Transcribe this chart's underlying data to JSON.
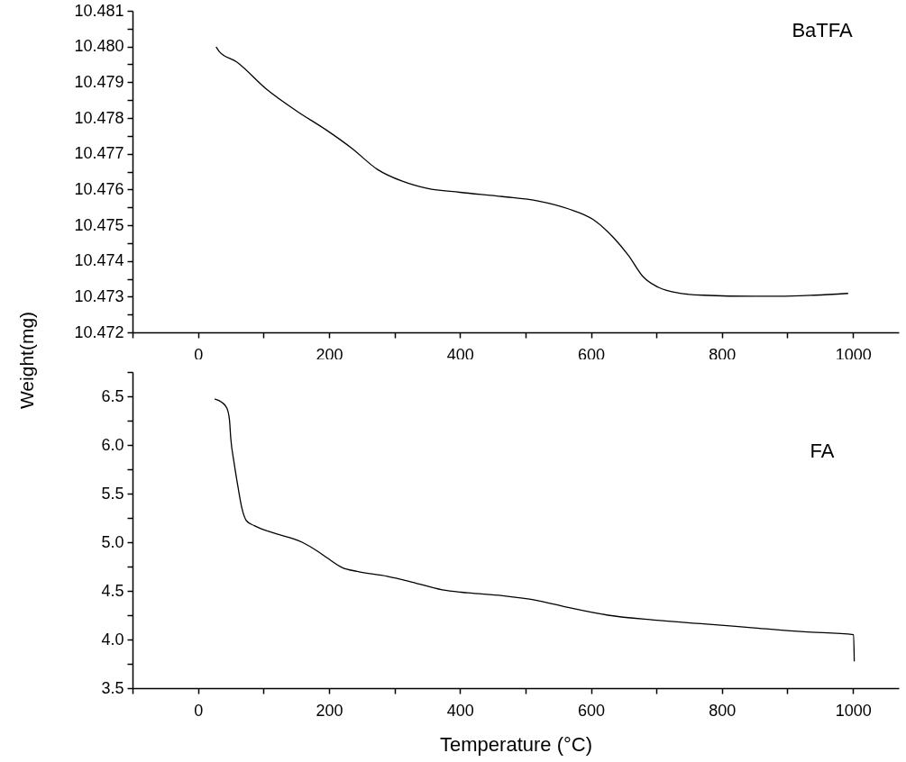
{
  "chart_data": [
    {
      "type": "line",
      "ylabel": "Weight(mg)",
      "xlim": [
        -100,
        1070
      ],
      "ylim": [
        10.472,
        10.481
      ],
      "xticks": [
        {
          "value": -100,
          "label": null
        },
        0,
        {
          "value": 100,
          "label": null
        },
        200,
        {
          "value": 300,
          "label": null
        },
        400,
        {
          "value": 500,
          "label": null
        },
        600,
        {
          "value": 700,
          "label": null
        },
        800,
        {
          "value": 900,
          "label": null
        },
        1000
      ],
      "yticks": [
        {
          "value": 10.472,
          "label": "10.472"
        },
        {
          "value": 10.4725,
          "label": null
        },
        {
          "value": 10.473,
          "label": "10.473"
        },
        {
          "value": 10.4735,
          "label": null
        },
        {
          "value": 10.474,
          "label": "10.474"
        },
        {
          "value": 10.4745,
          "label": null
        },
        {
          "value": 10.475,
          "label": "10.475"
        },
        {
          "value": 10.4755,
          "label": null
        },
        {
          "value": 10.476,
          "label": "10.476"
        },
        {
          "value": 10.4765,
          "label": null
        },
        {
          "value": 10.477,
          "label": "10.477"
        },
        {
          "value": 10.4775,
          "label": null
        },
        {
          "value": 10.478,
          "label": "10.478"
        },
        {
          "value": 10.4785,
          "label": null
        },
        {
          "value": 10.479,
          "label": "10.479"
        },
        {
          "value": 10.4795,
          "label": null
        },
        {
          "value": 10.48,
          "label": "10.480"
        },
        {
          "value": 10.4805,
          "label": null
        },
        {
          "value": 10.481,
          "label": "10.481"
        }
      ],
      "series": [
        {
          "name": "BaTFA",
          "color": "#000000",
          "x": [
            28,
            32,
            59,
            105,
            151,
            197,
            235,
            274,
            312,
            350,
            400,
            465,
            519,
            565,
            604,
            634,
            657,
            680,
            703,
            734,
            772,
            849,
            887,
            941,
            992
          ],
          "values": [
            10.47998,
            10.47987,
            10.47957,
            10.4788,
            10.47819,
            10.47765,
            10.47715,
            10.47656,
            10.47623,
            10.47603,
            10.47592,
            10.4758,
            10.47568,
            10.47546,
            10.47515,
            10.47466,
            10.47416,
            10.47355,
            10.47326,
            10.4731,
            10.47304,
            10.47301,
            10.47301,
            10.47304,
            10.47309
          ]
        }
      ]
    },
    {
      "type": "line",
      "xlabel": "Temperature (°C)",
      "xlim": [
        -100,
        1070
      ],
      "ylim": [
        3.5,
        6.75
      ],
      "xticks": [
        {
          "value": -100,
          "label": null
        },
        0,
        {
          "value": 100,
          "label": null
        },
        200,
        {
          "value": 300,
          "label": null
        },
        400,
        {
          "value": 500,
          "label": null
        },
        600,
        {
          "value": 700,
          "label": null
        },
        800,
        {
          "value": 900,
          "label": null
        },
        1000
      ],
      "yticks": [
        3.5,
        {
          "value": 3.75,
          "label": null
        },
        {
          "value": 4,
          "label": "4.0"
        },
        {
          "value": 4.25,
          "label": null
        },
        4.5,
        {
          "value": 4.75,
          "label": null
        },
        {
          "value": 5,
          "label": "5.0"
        },
        {
          "value": 5.25,
          "label": null
        },
        5.5,
        {
          "value": 5.75,
          "label": null
        },
        {
          "value": 6,
          "label": "6.0"
        },
        {
          "value": 6.25,
          "label": null
        },
        6.5,
        {
          "value": 6.75,
          "label": null
        }
      ],
      "series": [
        {
          "name": "FA",
          "color": "#000000",
          "x": [
            26,
            36,
            44,
            48,
            50,
            55,
            61,
            67,
            74,
            86,
            113,
            159,
            182,
            197,
            220,
            243,
            289,
            327,
            373,
            412,
            465,
            519,
            565,
            626,
            696,
            772,
            849,
            925,
            1001,
            1002
          ],
          "values": [
            6.47,
            6.44,
            6.38,
            6.26,
            6.07,
            5.82,
            5.57,
            5.35,
            5.22,
            5.17,
            5.1,
            5.0,
            4.91,
            4.84,
            4.74,
            4.7,
            4.65,
            4.59,
            4.51,
            4.48,
            4.45,
            4.4,
            4.33,
            4.25,
            4.2,
            4.16,
            4.12,
            4.08,
            4.05,
            3.78
          ]
        }
      ]
    }
  ]
}
